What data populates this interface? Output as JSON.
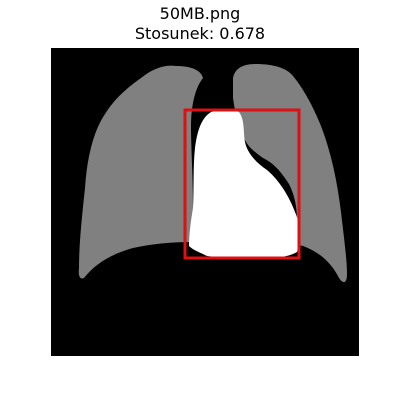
{
  "figure": {
    "filename": "50MB.png",
    "ratio_text": "Stosunek: 0.678"
  },
  "image": {
    "description_labels": {
      "background": "mask-background",
      "lungs": "lung-mask",
      "heart": "heart-mask",
      "box": "bounding-box"
    }
  },
  "colors": {
    "background": "#000000",
    "lung": "#808080",
    "heart": "#ffffff",
    "box": "#dd1111"
  }
}
